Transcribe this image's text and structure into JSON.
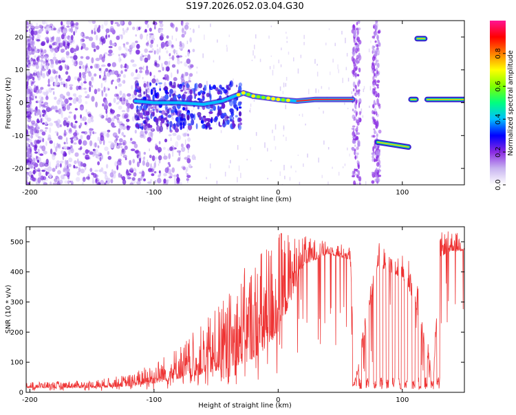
{
  "title": "S197.2026.052.03.04.G30",
  "chart_data": [
    {
      "type": "heatmap",
      "name": "spectrogram",
      "xlabel": "Height of straight line (km)",
      "ylabel": "Frequency (Hz)",
      "xlim": [
        -203,
        150
      ],
      "ylim": [
        -25,
        25
      ],
      "xticks": [
        -200,
        -100,
        0,
        100
      ],
      "xtick_labels": [
        "-200",
        "-100",
        "0",
        "100"
      ],
      "yticks": [
        -20,
        -10,
        0,
        10,
        20
      ],
      "ytick_labels": [
        "-20",
        "-10",
        "0",
        "10",
        "20"
      ],
      "colorbar": {
        "label": "Normalized spectral amplitude",
        "range": [
          0,
          1
        ],
        "ticks": [
          0.0,
          0.2,
          0.4,
          0.6,
          0.8
        ],
        "tick_labels": [
          "0.0",
          "0.2",
          "0.4",
          "0.6",
          "0.8"
        ],
        "colormap": [
          "#ffffff",
          "#c8b4f0",
          "#8a2be2",
          "#0000ff",
          "#00bfff",
          "#00ff7f",
          "#7fff00",
          "#ffff00",
          "#ff7f00",
          "#ff0000",
          "#ff1493"
        ]
      },
      "tone_track": [
        {
          "x": -115,
          "f": 0.5
        },
        {
          "x": -100,
          "f": 0.0
        },
        {
          "x": -80,
          "f": 0.0
        },
        {
          "x": -60,
          "f": -0.5
        },
        {
          "x": -45,
          "f": 0.5
        },
        {
          "x": -35,
          "f": 2.0
        },
        {
          "x": -28,
          "f": 3.0
        },
        {
          "x": -20,
          "f": 2.0
        },
        {
          "x": -10,
          "f": 1.5
        },
        {
          "x": 0,
          "f": 1.0
        },
        {
          "x": 15,
          "f": 0.5
        },
        {
          "x": 30,
          "f": 1.0
        },
        {
          "x": 60,
          "f": 1.0
        }
      ],
      "segments": [
        {
          "x0": 80,
          "x1": 105,
          "f0": -12.0,
          "f1": -13.5
        },
        {
          "x0": 112,
          "x1": 118,
          "f0": 19.5,
          "f1": 19.5
        },
        {
          "x0": 107,
          "x1": 111,
          "f0": 1.0,
          "f1": 1.0
        },
        {
          "x0": 120,
          "x1": 150,
          "f0": 1.0,
          "f1": 1.0
        }
      ]
    },
    {
      "type": "line",
      "name": "snr",
      "xlabel": "Height of straight line (km)",
      "ylabel": "SNR (10 * v/v)",
      "xlim": [
        -203,
        150
      ],
      "ylim": [
        0,
        550
      ],
      "xticks": [
        -200,
        -100,
        0,
        100
      ],
      "xtick_labels": [
        "-200",
        "-100",
        "0",
        "100"
      ],
      "yticks": [
        0,
        100,
        200,
        300,
        400,
        500
      ],
      "ytick_labels": [
        "0",
        "100",
        "200",
        "300",
        "400",
        "500"
      ],
      "color": "#ee3333",
      "envelope": {
        "x": [
          -203,
          -150,
          -120,
          -100,
          -80,
          -60,
          -40,
          -25,
          -10,
          0,
          10,
          20,
          40,
          58,
          62,
          80,
          100,
          110,
          125,
          130,
          140,
          150
        ],
        "base": [
          15,
          15,
          20,
          30,
          45,
          60,
          80,
          100,
          140,
          200,
          300,
          420,
          460,
          440,
          20,
          420,
          380,
          300,
          30,
          450,
          470,
          470
        ],
        "peak": [
          35,
          40,
          60,
          100,
          160,
          230,
          330,
          430,
          500,
          550,
          530,
          520,
          500,
          490,
          40,
          500,
          460,
          430,
          60,
          530,
          540,
          520
        ]
      },
      "dropouts": [
        61,
        66,
        72,
        78,
        83,
        88,
        93,
        98,
        103,
        109,
        114,
        119,
        124,
        129
      ]
    }
  ]
}
